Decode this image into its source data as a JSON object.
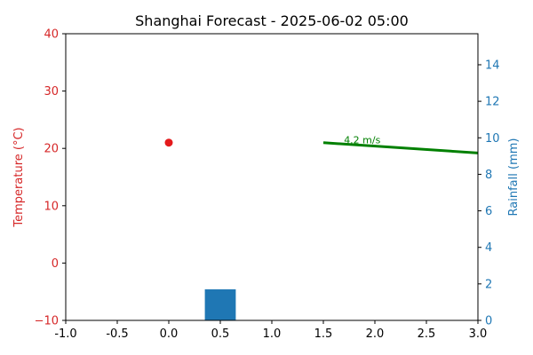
{
  "chart_data": {
    "type": "combo",
    "title": "Shanghai Forecast - 2025-06-02 05:00",
    "xlim": [
      -1.0,
      3.0
    ],
    "x_ticks": [
      "-1.0",
      "-0.5",
      "0.0",
      "0.5",
      "1.0",
      "1.5",
      "2.0",
      "2.5",
      "3.0"
    ],
    "x_tick_values": [
      -1.0,
      -0.5,
      0.0,
      0.5,
      1.0,
      1.5,
      2.0,
      2.5,
      3.0
    ],
    "y_left": {
      "label": "Temperature (°C)",
      "ylim": [
        -10,
        40
      ],
      "ticks": [
        "−10",
        "0",
        "10",
        "20",
        "30",
        "40"
      ],
      "tick_values": [
        -10,
        0,
        10,
        20,
        30,
        40
      ],
      "color": "#d62728"
    },
    "y_right": {
      "label": "Rainfall (mm)",
      "ylim": [
        0,
        15.7
      ],
      "ticks": [
        "0",
        "2",
        "4",
        "6",
        "8",
        "10",
        "12",
        "14"
      ],
      "tick_values": [
        0,
        2,
        4,
        6,
        8,
        10,
        12,
        14
      ],
      "color": "#1f77b4"
    },
    "temperature_point": {
      "x": 0.0,
      "y": 21.0,
      "color": "#e41a1c"
    },
    "rainfall_bar": {
      "x": 0.5,
      "width": 0.3,
      "value": 1.7,
      "color": "#1f77b4"
    },
    "wind_line": {
      "points": [
        [
          1.5,
          21.0
        ],
        [
          3.0,
          19.2
        ]
      ],
      "color": "#008000",
      "label": "4.2 m/s",
      "label_pos": [
        1.7,
        21.0
      ]
    },
    "grid": false
  }
}
